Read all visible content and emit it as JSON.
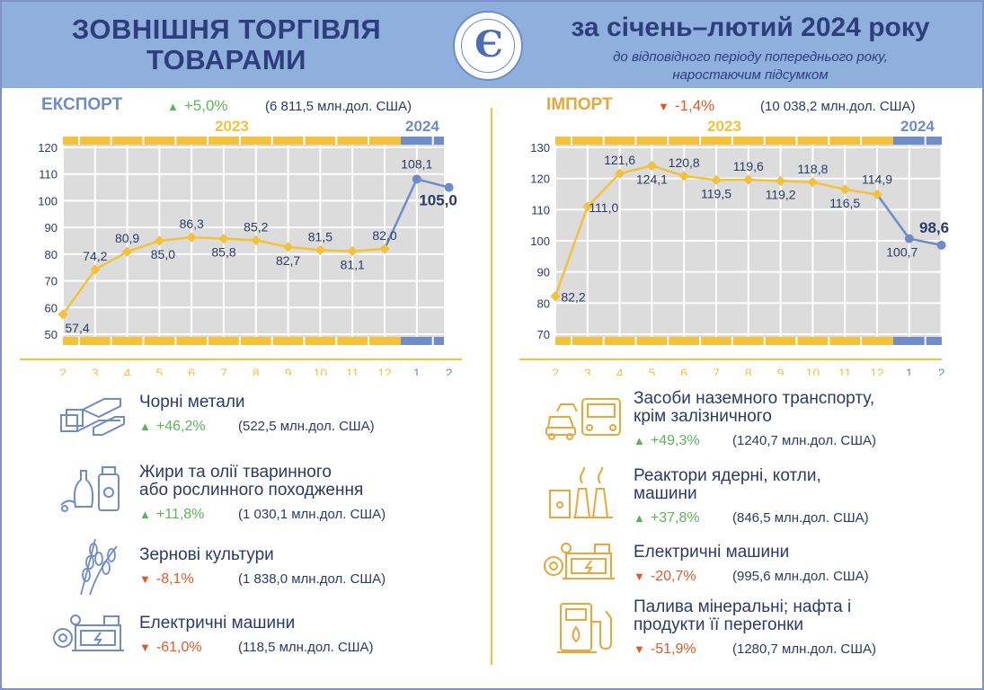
{
  "header": {
    "title_line1": "ЗОВНІШНЯ ТОРГІВЛЯ",
    "title_line2": "ТОВАРАМИ",
    "period": "за січень–лютий 2024 року",
    "subtitle_line1": "до відповідного періоду попереднього року,",
    "subtitle_line2": "наростаючим підсумком",
    "logo_text": "Є"
  },
  "export": {
    "label": "ЕКСПОРТ",
    "change": "+5,0%",
    "value": "(6 811,5 млн.дол. США)",
    "items": [
      {
        "title": [
          "Чорні метали"
        ],
        "change": "+46,2%",
        "value": "(522,5 млн.дол. США)",
        "dir": "up",
        "icon": "steel-beams-icon"
      },
      {
        "title": [
          "Жири та олії тваринного",
          "або рослинного походження"
        ],
        "change": "+11,8%",
        "value": "(1 030,1 млн.дол. США)",
        "dir": "up",
        "icon": "oil-bottles-icon"
      },
      {
        "title": [
          "Зернові культури"
        ],
        "change": "-8,1%",
        "value": "(1 838,0 млн.дол. США)",
        "dir": "down",
        "icon": "wheat-icon"
      },
      {
        "title": [
          "Електричні машини"
        ],
        "change": "-61,0%",
        "value": "(118,5 млн.дол. США)",
        "dir": "down",
        "icon": "electric-machine-icon"
      }
    ]
  },
  "import": {
    "label": "ІМПОРТ",
    "change": "-1,4%",
    "value": "(10 038,2 млн.дол. США)",
    "items": [
      {
        "title": [
          "Засоби наземного транспорту,",
          "крім залізничного"
        ],
        "change": "+49,3%",
        "value": "(1240,7 млн.дол. США)",
        "dir": "up",
        "icon": "vehicles-icon"
      },
      {
        "title": [
          "Реактори ядерні, котли,",
          "машини"
        ],
        "change": "+37,8%",
        "value": "(846,5 млн.дол. США)",
        "dir": "up",
        "icon": "power-plant-icon"
      },
      {
        "title": [
          "Електричні машини"
        ],
        "change": "-20,7%",
        "value": "(995,6 млн.дол. США)",
        "dir": "down",
        "icon": "electric-machine-icon"
      },
      {
        "title": [
          "Палива мінеральні; нафта і",
          "продукти її перегонки"
        ],
        "change": "-51,9%",
        "value": "(1280,7 млн.дол. США)",
        "dir": "down",
        "icon": "fuel-pump-icon"
      }
    ]
  },
  "colors": {
    "year2023": "#f3c23a",
    "year2024": "#6f8cc8",
    "plot_bg": "#dcdcdc",
    "up": "#5db35d",
    "down": "#e05a2b",
    "import_label": "#e9a63a",
    "export_label": "#6f8cc8"
  },
  "chart_data": [
    {
      "type": "line",
      "categories": [
        "2",
        "3",
        "4",
        "5",
        "6",
        "7",
        "8",
        "9",
        "10",
        "11",
        "12",
        "1",
        "2"
      ],
      "years": [
        {
          "label": "2023",
          "from": 0,
          "to": 10
        },
        {
          "label": "2024",
          "from": 11,
          "to": 12
        }
      ],
      "values": [
        57.4,
        74.2,
        80.9,
        85.0,
        86.3,
        85.8,
        85.2,
        82.7,
        81.5,
        81.1,
        82.0,
        108.1,
        105.0
      ],
      "value_labels": [
        "57,4",
        "74,2",
        "80,9",
        "85,0",
        "86,3",
        "85,8",
        "85,2",
        "82,7",
        "81,5",
        "81,1",
        "82,0",
        "108,1",
        "105,0"
      ],
      "yticks": [
        50,
        60,
        70,
        80,
        90,
        100,
        110,
        120
      ],
      "ylim": [
        50,
        120
      ],
      "grid": true
    },
    {
      "type": "line",
      "categories": [
        "2",
        "3",
        "4",
        "5",
        "6",
        "7",
        "8",
        "9",
        "10",
        "11",
        "12",
        "1",
        "2"
      ],
      "years": [
        {
          "label": "2023",
          "from": 0,
          "to": 10
        },
        {
          "label": "2024",
          "from": 11,
          "to": 12
        }
      ],
      "values": [
        82.2,
        111.0,
        121.6,
        124.1,
        120.8,
        119.5,
        119.6,
        119.2,
        118.8,
        116.5,
        114.9,
        100.7,
        98.6
      ],
      "value_labels": [
        "82,2",
        "111,0",
        "121,6",
        "124,1",
        "120,8",
        "119,5",
        "119,6",
        "119,2",
        "118,8",
        "116,5",
        "114,9",
        "100,7",
        "98,6"
      ],
      "yticks": [
        70,
        80,
        90,
        100,
        110,
        120,
        130
      ],
      "ylim": [
        70,
        130
      ],
      "grid": true
    }
  ]
}
